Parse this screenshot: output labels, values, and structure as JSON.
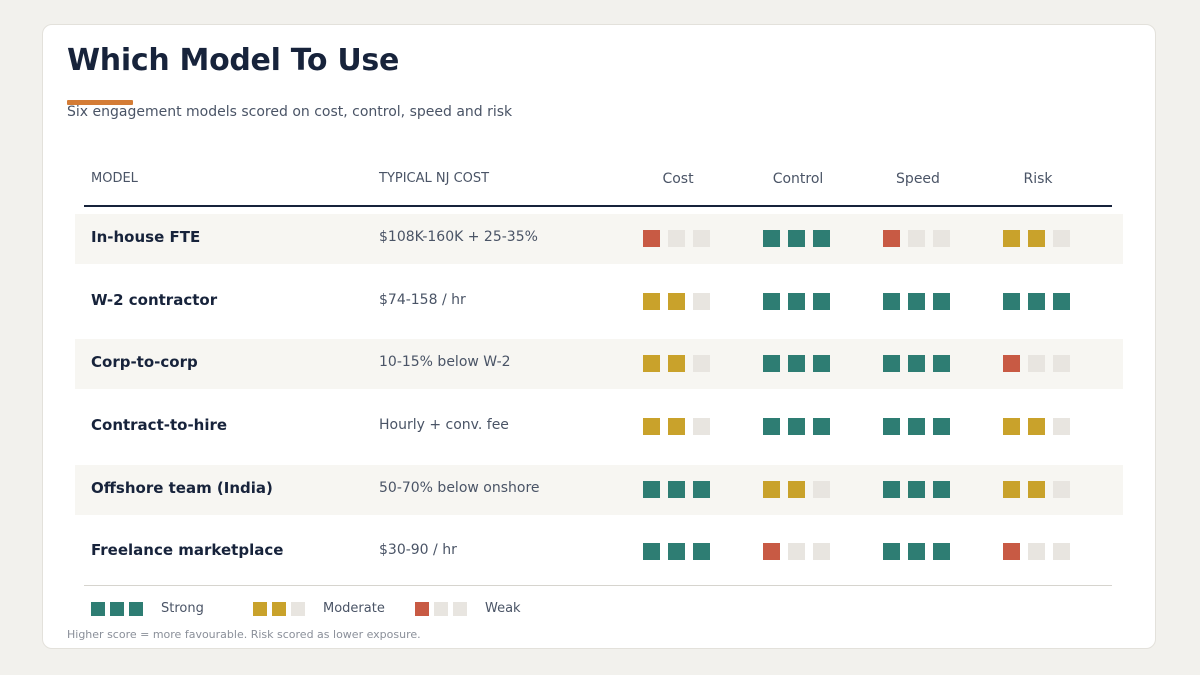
{
  "title": "Which Model To Use",
  "subtitle": "Six engagement models scored on cost, control, speed and risk",
  "headers": {
    "model": "MODEL",
    "cost": "TYPICAL NJ COST",
    "metrics": [
      "Cost",
      "Control",
      "Speed",
      "Risk"
    ]
  },
  "colors": {
    "strong": "#2e7d73",
    "moderate": "#c9a22b",
    "weak": "#c85a44",
    "empty": "#e8e5e0",
    "accent": "#d47c36"
  },
  "rows": [
    {
      "model": "In-house FTE",
      "cost": "$108K-160K + 25-35%",
      "scores": [
        1,
        3,
        1,
        2
      ]
    },
    {
      "model": "W-2 contractor",
      "cost": "$74-158 / hr",
      "scores": [
        2,
        3,
        3,
        3
      ]
    },
    {
      "model": "Corp-to-corp",
      "cost": "10-15% below W-2",
      "scores": [
        2,
        3,
        3,
        1
      ]
    },
    {
      "model": "Contract-to-hire",
      "cost": "Hourly + conv. fee",
      "scores": [
        2,
        3,
        3,
        2
      ]
    },
    {
      "model": "Offshore team (India)",
      "cost": "50-70% below onshore",
      "scores": [
        3,
        2,
        3,
        2
      ]
    },
    {
      "model": "Freelance marketplace",
      "cost": "$30-90 / hr",
      "scores": [
        3,
        1,
        3,
        1
      ]
    }
  ],
  "legend": [
    {
      "label": "Strong",
      "score": 3
    },
    {
      "label": "Moderate",
      "score": 2
    },
    {
      "label": "Weak",
      "score": 1
    }
  ],
  "footnote": "Higher score = more favourable. Risk scored as lower exposure."
}
